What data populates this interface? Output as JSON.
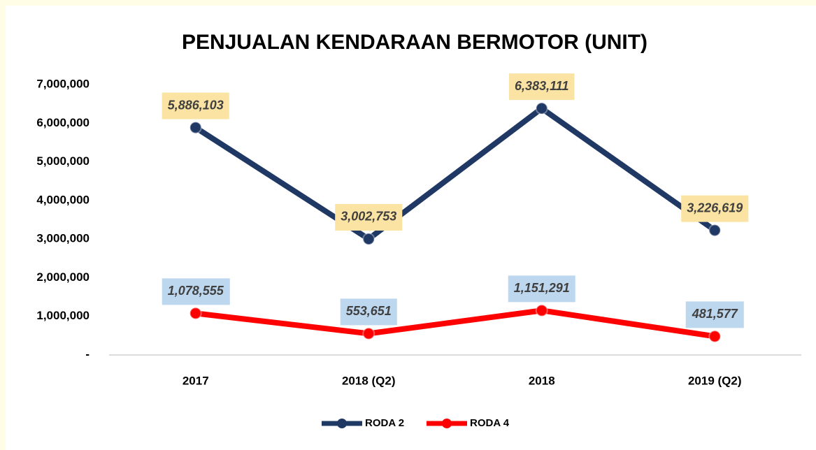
{
  "chart_data": {
    "type": "line",
    "title": "PENJUALAN KENDARAAN BERMOTOR (UNIT)",
    "categories": [
      "2017",
      "2018 (Q2)",
      "2018",
      "2019 (Q2)"
    ],
    "series": [
      {
        "name": "RODA 2",
        "color": "#1f3864",
        "label_color": "#fbe3a4",
        "values": [
          5886103,
          3002753,
          6383111,
          3226619
        ],
        "value_labels": [
          "5,886,103",
          "3,002,753",
          "6,383,111",
          "3,226,619"
        ]
      },
      {
        "name": "RODA 4",
        "color": "#ff0000",
        "label_color": "#bdd7ee",
        "values": [
          1078555,
          553651,
          1151291,
          481577
        ],
        "value_labels": [
          "1,078,555",
          "553,651",
          "1,151,291",
          "481,577"
        ]
      }
    ],
    "ylim": [
      0,
      7000000
    ],
    "yticks": [
      {
        "value": 0,
        "label": "-"
      },
      {
        "value": 1000000,
        "label": "1,000,000"
      },
      {
        "value": 2000000,
        "label": "2,000,000"
      },
      {
        "value": 3000000,
        "label": "3,000,000"
      },
      {
        "value": 4000000,
        "label": "4,000,000"
      },
      {
        "value": 5000000,
        "label": "5,000,000"
      },
      {
        "value": 6000000,
        "label": "6,000,000"
      },
      {
        "value": 7000000,
        "label": "7,000,000"
      }
    ],
    "grid": false,
    "legend": "bottom"
  }
}
